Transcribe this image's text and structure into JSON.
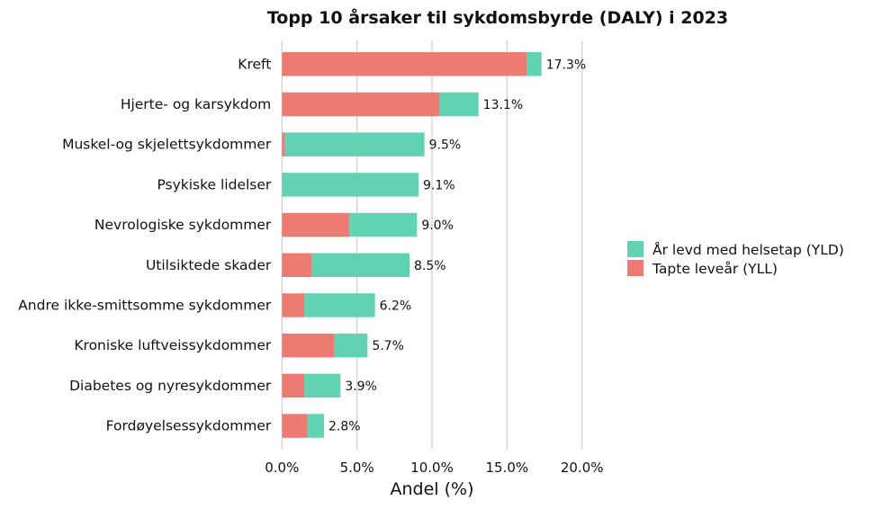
{
  "chart_data": {
    "type": "bar",
    "orientation": "horizontal",
    "stacked": true,
    "title": "Topp 10 årsaker til sykdomsbyrde (DALY) i 2023",
    "xlabel": "Andel (%)",
    "ylabel": "",
    "xlim": [
      0,
      20
    ],
    "xticks": [
      "0.0%",
      "5.0%",
      "10.0%",
      "15.0%",
      "20.0%"
    ],
    "grid": "vertical",
    "legend_position": "right",
    "categories": [
      "Kreft",
      "Hjerte- og karsykdom",
      "Muskel-og skjelettsykdommer",
      "Psykiske lidelser",
      "Nevrologiske sykdommer",
      "Utilsiktede skader",
      "Andre ikke-smittsomme sykdommer",
      "Kroniske luftveissykdommer",
      "Diabetes og nyresykdommer",
      "Fordøyelsessykdommer"
    ],
    "series": [
      {
        "name": "Tapte leveår (YLL)",
        "color": "#ED7B74",
        "values": [
          16.3,
          10.5,
          0.2,
          0.0,
          4.5,
          2.0,
          1.5,
          3.5,
          1.5,
          1.7
        ]
      },
      {
        "name": "År levd med helsetap (YLD)",
        "color": "#61D3B3",
        "values": [
          1.0,
          2.6,
          9.3,
          9.1,
          4.5,
          6.5,
          4.7,
          2.2,
          2.4,
          1.1
        ]
      }
    ],
    "totals": [
      17.3,
      13.1,
      9.5,
      9.1,
      9.0,
      8.5,
      6.2,
      5.7,
      3.9,
      2.8
    ],
    "data_labels": [
      "17.3%",
      "13.1%",
      "9.5%",
      "9.1%",
      "9.0%",
      "8.5%",
      "6.2%",
      "5.7%",
      "3.9%",
      "2.8%"
    ],
    "legend": [
      "År levd med helsetap (YLD)",
      "Tapte leveår (YLL)"
    ]
  }
}
